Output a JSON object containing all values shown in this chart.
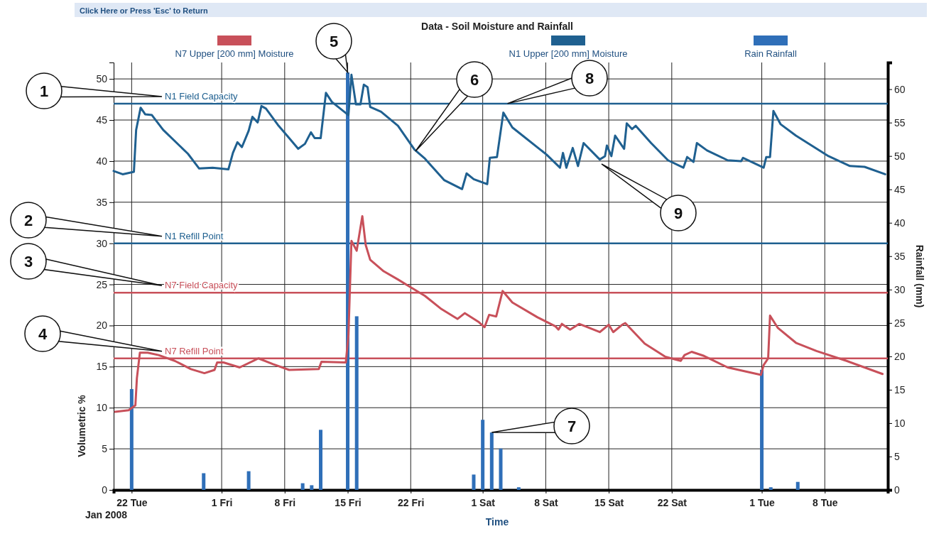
{
  "chart_data": {
    "type": "line",
    "title": "Data - Soil Moisture and Rainfall",
    "xlabel": "Time",
    "ylabel": "Volumetric %",
    "y2label": "Rainfall (mm)",
    "annotations": [
      "Click Here or Press 'Esc' to Return",
      "Jan 2008",
      "1",
      "2",
      "3",
      "4",
      {
        "text": "5",
        "x": "2008-02-15",
        "y": 50.8
      },
      "6",
      {
        "text": "7",
        "x": "2008-03-02",
        "y": 7
      },
      {
        "text": "8",
        "x": "2008-03-03T18:00",
        "y": 47
      },
      "9"
    ],
    "xlim": [
      "2008-01-20",
      "2008-04-15"
    ],
    "xticks": [
      {
        "value": "2008-01-22",
        "label": "22 Tue"
      },
      {
        "value": "2008-02-01",
        "label": "1 Fri"
      },
      {
        "value": "2008-02-08",
        "label": "8 Fri"
      },
      {
        "value": "2008-02-15",
        "label": "15 Fri"
      },
      {
        "value": "2008-02-22",
        "label": "22 Fri"
      },
      {
        "value": "2008-03-01",
        "label": "1 Sat"
      },
      {
        "value": "2008-03-08",
        "label": "8 Sat"
      },
      {
        "value": "2008-03-15",
        "label": "15 Sat"
      },
      {
        "value": "2008-03-22",
        "label": "22 Sat"
      },
      {
        "value": "2008-04-01",
        "label": "1 Tue"
      },
      {
        "value": "2008-04-08",
        "label": "8 Tue"
      }
    ],
    "ylim": [
      0,
      52
    ],
    "yticks": [
      0,
      5,
      10,
      15,
      20,
      25,
      30,
      35,
      40,
      45,
      50
    ],
    "y2lim": [
      0,
      64
    ],
    "y2ticks": [
      0,
      5,
      10,
      15,
      20,
      25,
      30,
      35,
      40,
      45,
      50,
      55,
      60
    ],
    "grid": true,
    "legend": "top",
    "ref_lines": [
      {
        "axis": "y",
        "value": 47,
        "label": "N1 Field Capacity",
        "color": "#1f6090"
      },
      {
        "axis": "y",
        "value": 30,
        "label": "N1 Refill Point",
        "color": "#1f6090"
      },
      {
        "axis": "y",
        "value": 24,
        "label": "N7 Field Capacity",
        "color": "#c8505a"
      },
      {
        "axis": "y",
        "value": 16,
        "label": "N7 Refill Point",
        "color": "#c8505a"
      }
    ],
    "series": [
      {
        "name": "N7 Upper  [200 mm] Moisture",
        "color": "#c8505a",
        "x": [
          "2008-01-20T04:00",
          "2008-01-21T16:00",
          "2008-01-22T10:00",
          "2008-01-22T14:00",
          "2008-01-22T22:00",
          "2008-01-23T19:00",
          "2008-01-25T00:00",
          "2008-01-26T19:00",
          "2008-01-28T14:00",
          "2008-01-30T02:00",
          "2008-01-31T05:00",
          "2008-01-31T12:00",
          "2008-02-01T05:00",
          "2008-02-03T00:00",
          "2008-02-05T02:00",
          "2008-02-06T17:00",
          "2008-02-08T12:00",
          "2008-02-11T19:00",
          "2008-02-12T02:00",
          "2008-02-14T19:00",
          "2008-02-15T02:00",
          "2008-02-15T10:00",
          "2008-02-16T00:00",
          "2008-02-16T15:00",
          "2008-02-17T00:00",
          "2008-02-17T12:00",
          "2008-02-19T00:00",
          "2008-02-20T14:00",
          "2008-02-22T02:00",
          "2008-02-23T14:00",
          "2008-02-25T10:00",
          "2008-02-27T05:00",
          "2008-02-28T00:00",
          "2008-02-29T14:00",
          "2008-03-01T05:00",
          "2008-03-01T17:00",
          "2008-03-02T12:00",
          "2008-03-03T05:00",
          "2008-03-04T07:00",
          "2008-03-07T02:00",
          "2008-03-09T02:00",
          "2008-03-09T10:00",
          "2008-03-09T19:00",
          "2008-03-10T17:00",
          "2008-03-11T17:00",
          "2008-03-14T00:00",
          "2008-03-15T00:00",
          "2008-03-15T12:00",
          "2008-03-16T12:00",
          "2008-03-16T20:00",
          "2008-03-19T00:00",
          "2008-03-21T07:00",
          "2008-03-23T00:00",
          "2008-03-23T10:00",
          "2008-03-24T05:00",
          "2008-03-25T14:00",
          "2008-03-28T05:00",
          "2008-03-31T22:00",
          "2008-04-01T05:00",
          "2008-04-01T17:00",
          "2008-04-01T22:00",
          "2008-04-02T19:00",
          "2008-04-04T19:00",
          "2008-04-07T02:00",
          "2008-04-10T10:00",
          "2008-04-14T10:00"
        ],
        "values": [
          9.5,
          9.7,
          10.3,
          13.6,
          16.7,
          16.7,
          16.4,
          15.7,
          14.7,
          14.2,
          14.6,
          15.5,
          15.5,
          14.9,
          16.0,
          15.3,
          14.6,
          14.7,
          15.6,
          15.5,
          18.8,
          30.3,
          29.1,
          33.3,
          29.8,
          28.0,
          26.6,
          25.6,
          24.6,
          23.6,
          22.0,
          20.8,
          21.5,
          20.4,
          19.8,
          21.3,
          21.1,
          24.2,
          22.8,
          21.0,
          19.9,
          19.5,
          20.2,
          19.5,
          20.2,
          19.2,
          20.1,
          19.2,
          20.1,
          20.3,
          17.8,
          16.2,
          15.7,
          16.4,
          16.8,
          16.3,
          14.9,
          14.0,
          15.2,
          16.0,
          21.2,
          19.7,
          17.9,
          16.9,
          15.7,
          14.1
        ]
      },
      {
        "name": "N1 Upper [200 mm] Moisture",
        "color": "#1f6090",
        "x": [
          "2008-01-20T00:00",
          "2008-01-21T00:00",
          "2008-01-22T06:00",
          "2008-01-22T12:00",
          "2008-01-23T00:00",
          "2008-01-23T12:00",
          "2008-01-24T06:00",
          "2008-01-25T12:00",
          "2008-01-28T06:00",
          "2008-01-29T12:00",
          "2008-01-31T00:00",
          "2008-02-01T18:00",
          "2008-02-02T06:00",
          "2008-02-02T18:00",
          "2008-02-03T06:00",
          "2008-02-04T00:00",
          "2008-02-04T10:00",
          "2008-02-05T00:00",
          "2008-02-05T10:00",
          "2008-02-05T22:00",
          "2008-02-07T06:00",
          "2008-02-08T12:00",
          "2008-02-09T12:00",
          "2008-02-10T06:00",
          "2008-02-10T22:00",
          "2008-02-11T08:00",
          "2008-02-12T00:00",
          "2008-02-12T14:00",
          "2008-02-13T06:00",
          "2008-02-15T02:00",
          "2008-02-15T10:00",
          "2008-02-15T22:00",
          "2008-02-16T10:00",
          "2008-02-16T19:00",
          "2008-02-17T05:00",
          "2008-02-17T12:00",
          "2008-02-18T17:00",
          "2008-02-20T14:00",
          "2008-02-22T10:00",
          "2008-02-23T14:00",
          "2008-02-25T17:00",
          "2008-02-27T17:00",
          "2008-02-28T05:00",
          "2008-02-29T00:00",
          "2008-03-01T12:00",
          "2008-03-01T19:00",
          "2008-03-02T14:00",
          "2008-03-03T07:00",
          "2008-03-04T07:00",
          "2008-03-08T02:00",
          "2008-03-09T14:00",
          "2008-03-09T22:00",
          "2008-03-10T07:00",
          "2008-03-11T00:00",
          "2008-03-11T14:00",
          "2008-03-12T05:00",
          "2008-03-14T00:00",
          "2008-03-14T14:00",
          "2008-03-14T19:00",
          "2008-03-15T07:00",
          "2008-03-15T17:00",
          "2008-03-16T17:00",
          "2008-03-17T00:00",
          "2008-03-17T14:00",
          "2008-03-18T00:00",
          "2008-03-19T17:00",
          "2008-03-21T14:00",
          "2008-03-23T07:00",
          "2008-03-23T17:00",
          "2008-03-24T10:00",
          "2008-03-24T19:00",
          "2008-03-25T22:00",
          "2008-03-28T05:00",
          "2008-03-29T17:00",
          "2008-03-29T22:00",
          "2008-04-01T05:00",
          "2008-04-01T12:00",
          "2008-04-01T22:00",
          "2008-04-02T07:00",
          "2008-04-03T02:00",
          "2008-04-04T19:00",
          "2008-04-08T10:00",
          "2008-04-10T19:00",
          "2008-04-12T10:00",
          "2008-04-14T17:00"
        ],
        "values": [
          38.8,
          38.4,
          38.7,
          43.8,
          46.5,
          45.7,
          45.6,
          43.8,
          40.9,
          39.1,
          39.2,
          39.0,
          41.0,
          42.3,
          41.7,
          43.7,
          45.4,
          44.7,
          46.7,
          46.4,
          44.4,
          42.8,
          41.5,
          42.1,
          43.5,
          42.8,
          42.8,
          48.3,
          47.2,
          45.6,
          50.5,
          46.9,
          46.9,
          49.3,
          49.0,
          46.6,
          46.0,
          44.3,
          41.4,
          40.3,
          37.7,
          36.6,
          38.5,
          37.8,
          37.2,
          40.4,
          40.5,
          45.9,
          44.1,
          40.8,
          39.2,
          41.0,
          39.2,
          41.6,
          39.4,
          42.2,
          40.2,
          40.6,
          41.9,
          40.6,
          43.1,
          41.5,
          44.6,
          43.9,
          44.3,
          42.2,
          40.1,
          39.2,
          40.5,
          39.9,
          42.2,
          41.3,
          40.1,
          40.0,
          40.4,
          39.2,
          40.5,
          40.5,
          46.1,
          44.5,
          43.1,
          40.6,
          39.4,
          39.3,
          38.4
        ]
      },
      {
        "name": "Rain Rainfall",
        "type": "bar",
        "axis": "y2",
        "color": "#2f6fb8",
        "x": [
          "2008-01-22",
          "2008-01-30",
          "2008-02-04",
          "2008-02-10",
          "2008-02-11",
          "2008-02-12",
          "2008-02-15",
          "2008-02-16",
          "2008-02-29",
          "2008-03-01",
          "2008-03-02",
          "2008-03-03",
          "2008-03-05",
          "2008-04-01",
          "2008-04-02",
          "2008-04-05"
        ],
        "values": [
          15.1,
          2.5,
          2.8,
          1.0,
          0.7,
          9.0,
          62.5,
          26.0,
          2.3,
          10.5,
          8.6,
          6.2,
          0.4,
          18.0,
          0.4,
          1.2
        ]
      }
    ]
  }
}
